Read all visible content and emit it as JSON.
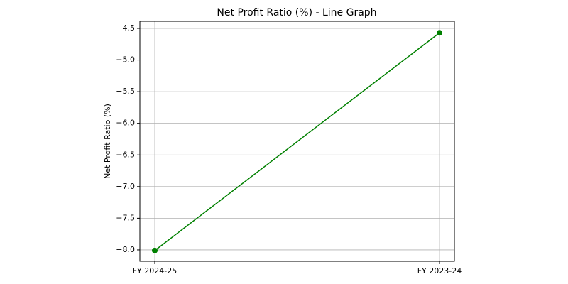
{
  "chart_data": {
    "type": "line",
    "title": "Net Profit Ratio (%) - Line Graph",
    "y_label": "Net Profit Ratio (%)",
    "categories": [
      "FY 2024-25",
      "FY 2023-24"
    ],
    "values": [
      -8.01,
      -4.57
    ],
    "color": "#008000",
    "ylim": [
      -8.18,
      -4.388
    ],
    "yticks": [
      {
        "value": -8.0,
        "label": "−8.0"
      },
      {
        "value": -7.5,
        "label": "−7.5"
      },
      {
        "value": -7.0,
        "label": "−7.0"
      },
      {
        "value": -6.5,
        "label": "−6.5"
      },
      {
        "value": -6.0,
        "label": "−6.0"
      },
      {
        "value": -5.5,
        "label": "−5.5"
      },
      {
        "value": -5.0,
        "label": "−5.0"
      },
      {
        "value": -4.5,
        "label": "−4.5"
      }
    ],
    "grid": true
  }
}
